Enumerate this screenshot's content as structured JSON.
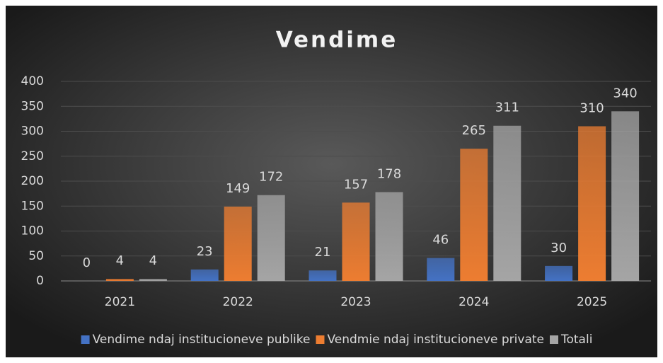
{
  "chart_data": {
    "type": "bar",
    "title": "Vendime",
    "categories": [
      "2021",
      "2022",
      "2023",
      "2024",
      "2025"
    ],
    "series": [
      {
        "name": "Vendime ndaj institucioneve publike",
        "color": "#4472c4",
        "values": [
          0,
          23,
          21,
          46,
          30
        ]
      },
      {
        "name": "Vendmie ndaj institucioneve private",
        "color": "#ed7d31",
        "values": [
          4,
          149,
          157,
          265,
          310
        ]
      },
      {
        "name": "Totali",
        "color": "#a5a5a5",
        "values": [
          4,
          172,
          178,
          311,
          340
        ]
      }
    ],
    "ylim": [
      0,
      400
    ],
    "yticks": [
      0,
      50,
      100,
      150,
      200,
      250,
      300,
      350,
      400
    ],
    "grid": true,
    "legend": "bottom"
  }
}
